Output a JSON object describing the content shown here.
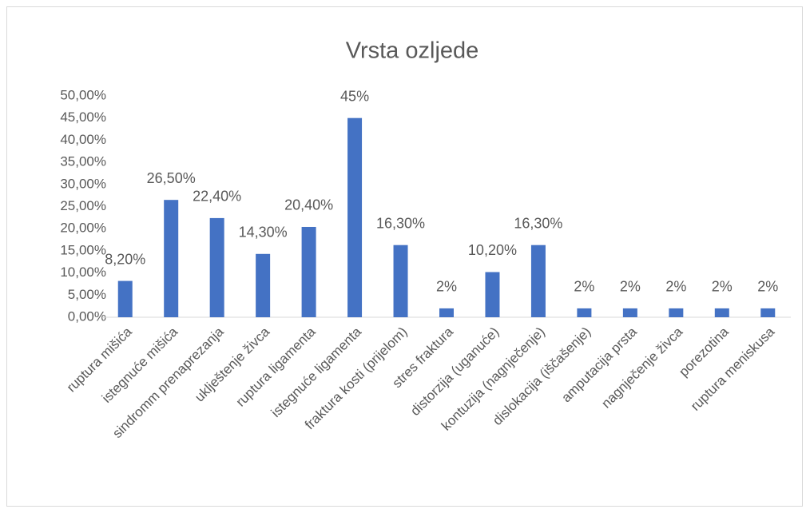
{
  "chart_data": {
    "type": "bar",
    "title": "Vrsta ozljede",
    "categories": [
      "ruptura mišića",
      "istegnuće mišića",
      "sindromm prenaprezanja",
      "uklještenje živca",
      "ruptura ligamenta",
      "istegnuće ligamenta",
      "fraktura kosti (prijelom)",
      "stres fraktura",
      "distorzija (uganuće)",
      "kontuzija (nagnječenje)",
      "dislokacija (iščašenje)",
      "amputacija prsta",
      "nagnječenje živca",
      "porezotina",
      "ruptura meniskusa"
    ],
    "values": [
      8.2,
      26.5,
      22.4,
      14.3,
      20.4,
      45,
      16.3,
      2,
      10.2,
      16.3,
      2,
      2,
      2,
      2,
      2
    ],
    "value_labels": [
      "8,20%",
      "26,50%",
      "22,40%",
      "14,30%",
      "20,40%",
      "45%",
      "16,30%",
      "2%",
      "10,20%",
      "16,30%",
      "2%",
      "2%",
      "2%",
      "2%",
      "2%"
    ],
    "color": "#4472c4",
    "ylim": [
      0,
      50
    ],
    "yticks": [
      {
        "value": 0,
        "label": "0,00%"
      },
      {
        "value": 5,
        "label": "5,00%"
      },
      {
        "value": 10,
        "label": "10,00%"
      },
      {
        "value": 15,
        "label": "15,00%"
      },
      {
        "value": 20,
        "label": "20,00%"
      },
      {
        "value": 25,
        "label": "25,00%"
      },
      {
        "value": 30,
        "label": "30,00%"
      },
      {
        "value": 35,
        "label": "35,00%"
      },
      {
        "value": 40,
        "label": "40,00%"
      },
      {
        "value": 45,
        "label": "45,00%"
      },
      {
        "value": 50,
        "label": "50,00%"
      }
    ],
    "grid": false
  }
}
